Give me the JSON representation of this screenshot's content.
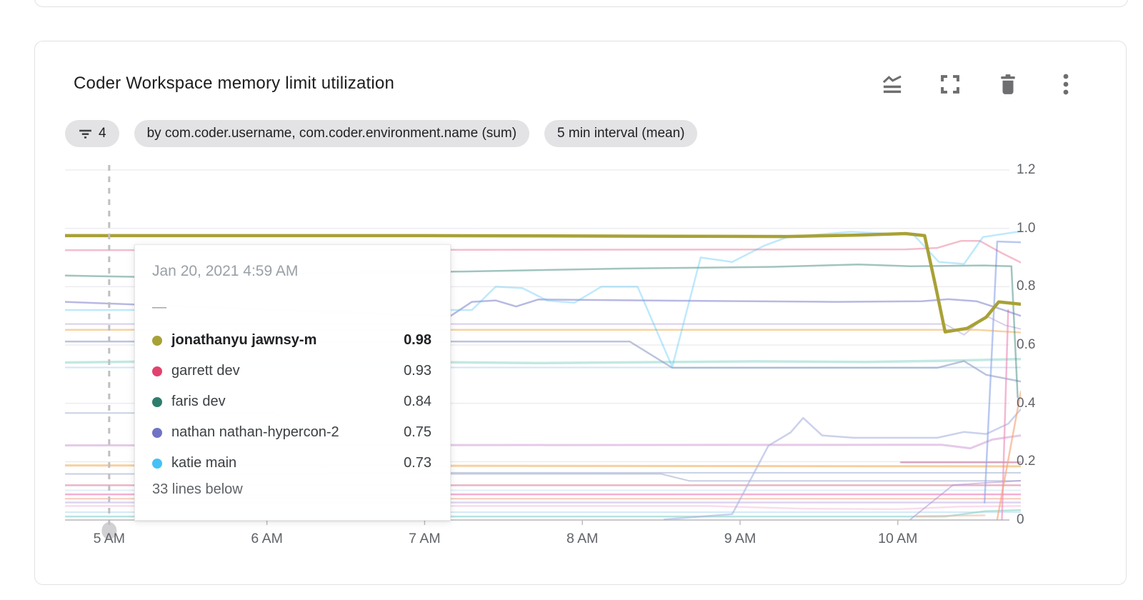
{
  "card": {
    "title": "Coder Workspace memory limit utilization",
    "toolbar": {
      "icons": [
        "area-chart-icon",
        "fullscreen-icon",
        "trash-icon",
        "kebab-menu-icon"
      ]
    }
  },
  "chips": {
    "filter_icon": "filter-funnel-icon",
    "filter_count": "4",
    "group_by": "by com.coder.username, com.coder.environment.name (sum)",
    "interval": "5 min interval (mean)"
  },
  "tooltip": {
    "timestamp": "Jan 20, 2021 4:59 AM",
    "placeholder": "—",
    "rows": [
      {
        "name": "jonathanyu jawnsy-m",
        "value": "0.98",
        "color": "#a8a136",
        "bold": true
      },
      {
        "name": "garrett dev",
        "value": "0.93",
        "color": "#e0436e",
        "bold": false
      },
      {
        "name": "faris dev",
        "value": "0.84",
        "color": "#2e7d6e",
        "bold": false
      },
      {
        "name": "nathan nathan-hypercon-2",
        "value": "0.75",
        "color": "#6f74c5",
        "bold": false
      },
      {
        "name": "katie main",
        "value": "0.73",
        "color": "#45c1f5",
        "bold": false
      }
    ],
    "footer": "33 lines below"
  },
  "chart_data": {
    "type": "line",
    "title": "Coder Workspace memory limit utilization",
    "x_domain": [
      4.72,
      10.78
    ],
    "x_unit": "hour-of-day",
    "y_domain": [
      0,
      1.2
    ],
    "grid": true,
    "legend_position": "tooltip-only",
    "x_ticks": [
      {
        "v": 5,
        "label": "5 AM"
      },
      {
        "v": 6,
        "label": "6 AM"
      },
      {
        "v": 7,
        "label": "7 AM"
      },
      {
        "v": 8,
        "label": "8 AM"
      },
      {
        "v": 9,
        "label": "9 AM"
      },
      {
        "v": 10,
        "label": "10 AM"
      }
    ],
    "y_ticks": [
      {
        "v": 0,
        "label": "0"
      },
      {
        "v": 0.2,
        "label": "0.2"
      },
      {
        "v": 0.4,
        "label": "0.4"
      },
      {
        "v": 0.6,
        "label": "0.6"
      },
      {
        "v": 0.8,
        "label": "0.8"
      },
      {
        "v": 1.0,
        "label": "1.0"
      },
      {
        "v": 1.2,
        "label": "1.2"
      }
    ],
    "cursor": {
      "hour": 5.0,
      "timestamp": "Jan 20, 2021 4:59 AM"
    },
    "series": [
      {
        "name": "paleblue-0.52",
        "color": "#b5daf2",
        "width": 2,
        "opacity": 0.65,
        "points": [
          [
            4.72,
            0.523
          ],
          [
            10.78,
            0.523
          ]
        ]
      },
      {
        "name": "teal-0.54",
        "color": "#79ccc1",
        "width": 3.5,
        "opacity": 0.45,
        "points": [
          [
            4.72,
            0.54
          ],
          [
            5.5,
            0.545
          ],
          [
            6.1,
            0.538
          ],
          [
            6.9,
            0.542
          ],
          [
            7.7,
            0.538
          ],
          [
            8.4,
            0.541
          ],
          [
            9.1,
            0.544
          ],
          [
            9.8,
            0.542
          ],
          [
            10.3,
            0.546
          ],
          [
            10.78,
            0.552
          ]
        ]
      },
      {
        "name": "lavender-0.67",
        "color": "#b9a7dd",
        "width": 2,
        "opacity": 0.55,
        "points": [
          [
            4.72,
            0.672
          ],
          [
            10.3,
            0.672
          ],
          [
            10.42,
            0.635
          ],
          [
            10.56,
            0.7
          ],
          [
            10.68,
            0.668
          ],
          [
            10.78,
            0.655
          ]
        ]
      },
      {
        "name": "orange-0.65",
        "color": "#f2b566",
        "width": 2.5,
        "opacity": 0.6,
        "points": [
          [
            4.72,
            0.652
          ],
          [
            10.5,
            0.652
          ],
          [
            10.78,
            0.643
          ]
        ]
      },
      {
        "name": "slate-0.61",
        "color": "#8f9dc4",
        "width": 2.5,
        "opacity": 0.6,
        "points": [
          [
            4.72,
            0.612
          ],
          [
            8.3,
            0.612
          ],
          [
            8.57,
            0.522
          ],
          [
            10.25,
            0.522
          ],
          [
            10.42,
            0.545
          ],
          [
            10.56,
            0.498
          ],
          [
            10.78,
            0.475
          ]
        ]
      },
      {
        "name": "slate-0.37",
        "color": "#9bacce",
        "width": 2,
        "opacity": 0.55,
        "points": [
          [
            4.72,
            0.367
          ],
          [
            6.05,
            0.367
          ],
          [
            6.4,
            0.162
          ],
          [
            10.78,
            0.162
          ]
        ]
      },
      {
        "name": "slate-0.16",
        "color": "#9aa8c9",
        "width": 2,
        "opacity": 0.55,
        "points": [
          [
            4.72,
            0.158
          ],
          [
            8.5,
            0.158
          ],
          [
            8.68,
            0.134
          ],
          [
            10.78,
            0.134
          ]
        ]
      },
      {
        "name": "plum-0.25",
        "color": "#cf9fd6",
        "width": 3,
        "opacity": 0.55,
        "points": [
          [
            4.72,
            0.256
          ],
          [
            10.28,
            0.258
          ],
          [
            10.46,
            0.246
          ],
          [
            10.6,
            0.276
          ],
          [
            10.78,
            0.29
          ]
        ]
      },
      {
        "name": "orange-0.19",
        "color": "#f0b060",
        "width": 3,
        "opacity": 0.6,
        "points": [
          [
            4.72,
            0.187
          ],
          [
            10.78,
            0.184
          ]
        ]
      },
      {
        "name": "rose-0.12",
        "color": "#d9849f",
        "width": 2.5,
        "opacity": 0.6,
        "points": [
          [
            4.72,
            0.119
          ],
          [
            10.78,
            0.119
          ]
        ]
      },
      {
        "name": "paleblue-0.10",
        "color": "#cde4f7",
        "width": 2,
        "opacity": 0.6,
        "points": [
          [
            4.72,
            0.102
          ],
          [
            10.78,
            0.102
          ]
        ]
      },
      {
        "name": "magenta-0.09",
        "color": "#ee79b2",
        "width": 2.5,
        "opacity": 0.6,
        "points": [
          [
            4.72,
            0.088
          ],
          [
            10.78,
            0.088
          ]
        ]
      },
      {
        "name": "salmon-0.07",
        "color": "#f2a58f",
        "width": 2,
        "opacity": 0.6,
        "points": [
          [
            4.72,
            0.073
          ],
          [
            10.78,
            0.073
          ]
        ]
      },
      {
        "name": "lavender-0.06",
        "color": "#c9b8e8",
        "width": 2.5,
        "opacity": 0.6,
        "points": [
          [
            4.72,
            0.06
          ],
          [
            10.78,
            0.06
          ]
        ]
      },
      {
        "name": "palepink-0.05",
        "color": "#f5c0dc",
        "width": 2.5,
        "opacity": 0.55,
        "points": [
          [
            4.72,
            0.048
          ],
          [
            8.8,
            0.048
          ],
          [
            9.4,
            0.039
          ],
          [
            10.0,
            0.037
          ],
          [
            10.4,
            0.046
          ],
          [
            10.78,
            0.048
          ]
        ]
      },
      {
        "name": "paleblue-0.03",
        "color": "#bcdff5",
        "width": 2,
        "opacity": 0.65,
        "points": [
          [
            4.72,
            0.027
          ],
          [
            10.78,
            0.027
          ]
        ]
      },
      {
        "name": "teal-0.01",
        "color": "#8fd5cc",
        "width": 2.5,
        "opacity": 0.65,
        "points": [
          [
            4.72,
            0.012
          ],
          [
            10.3,
            0.012
          ],
          [
            10.55,
            0.03
          ],
          [
            10.78,
            0.034
          ]
        ]
      },
      {
        "name": "periwinkle-bump",
        "color": "#a9b2e0",
        "width": 2.5,
        "opacity": 0.6,
        "points": [
          [
            8.52,
            0.002
          ],
          [
            8.95,
            0.02
          ],
          [
            9.18,
            0.255
          ],
          [
            9.32,
            0.3
          ],
          [
            9.4,
            0.35
          ],
          [
            9.52,
            0.29
          ],
          [
            9.72,
            0.282
          ],
          [
            10.25,
            0.282
          ],
          [
            10.42,
            0.302
          ],
          [
            10.56,
            0.295
          ],
          [
            10.7,
            0.33
          ],
          [
            10.78,
            0.38
          ]
        ]
      },
      {
        "name": "rose-short",
        "color": "#c2719b",
        "width": 2.5,
        "opacity": 0.6,
        "points": [
          [
            10.02,
            0.198
          ],
          [
            10.78,
            0.198
          ]
        ]
      },
      {
        "name": "purple-riser",
        "color": "#b08fd9",
        "width": 2,
        "opacity": 0.55,
        "points": [
          [
            10.08,
            0.002
          ],
          [
            10.35,
            0.12
          ],
          [
            10.78,
            0.135
          ]
        ]
      },
      {
        "name": "salmon-short",
        "color": "#f0b49b",
        "width": 2.5,
        "opacity": 0.55,
        "points": [
          [
            10.12,
            0.013
          ],
          [
            10.55,
            0.016
          ]
        ]
      },
      {
        "name": "blue-riser",
        "color": "#8ba3e8",
        "width": 2.5,
        "opacity": 0.6,
        "points": [
          [
            10.55,
            0.06
          ],
          [
            10.63,
            0.955
          ],
          [
            10.78,
            0.952
          ]
        ]
      },
      {
        "name": "pink-spike",
        "color": "#ec87b8",
        "width": 2.5,
        "opacity": 0.6,
        "points": [
          [
            10.66,
            0.002
          ],
          [
            10.7,
            0.72
          ]
        ]
      },
      {
        "name": "orange-spike",
        "color": "#f5a77b",
        "width": 2.5,
        "opacity": 0.65,
        "points": [
          [
            10.63,
            0.002
          ],
          [
            10.78,
            0.44
          ]
        ]
      },
      {
        "name": "garrett dev",
        "color": "#e0436e",
        "width": 2.5,
        "opacity": 0.35,
        "points": [
          [
            4.72,
            0.925
          ],
          [
            10.05,
            0.928
          ],
          [
            10.25,
            0.933
          ],
          [
            10.4,
            0.957
          ],
          [
            10.52,
            0.957
          ],
          [
            10.66,
            0.915
          ],
          [
            10.78,
            0.883
          ]
        ]
      },
      {
        "name": "faris dev",
        "color": "#2e7d6e",
        "width": 2.5,
        "opacity": 0.45,
        "points": [
          [
            4.72,
            0.838
          ],
          [
            5.35,
            0.832
          ],
          [
            5.65,
            0.842
          ],
          [
            6.35,
            0.846
          ],
          [
            7.25,
            0.852
          ],
          [
            8.25,
            0.862
          ],
          [
            9.2,
            0.868
          ],
          [
            9.75,
            0.876
          ],
          [
            10.08,
            0.87
          ],
          [
            10.55,
            0.873
          ],
          [
            10.72,
            0.87
          ],
          [
            10.76,
            0.42
          ]
        ]
      },
      {
        "name": "nathan nathan-hypercon-2",
        "color": "#6f74c5",
        "width": 2.5,
        "opacity": 0.5,
        "points": [
          [
            4.72,
            0.748
          ],
          [
            7.16,
            0.698
          ],
          [
            7.3,
            0.748
          ],
          [
            7.45,
            0.753
          ],
          [
            7.58,
            0.732
          ],
          [
            7.72,
            0.756
          ],
          [
            8.6,
            0.752
          ],
          [
            9.6,
            0.748
          ],
          [
            10.15,
            0.75
          ],
          [
            10.32,
            0.757
          ],
          [
            10.5,
            0.75
          ],
          [
            10.66,
            0.722
          ],
          [
            10.78,
            0.7
          ]
        ]
      },
      {
        "name": "katie main",
        "color": "#45c1f5",
        "width": 2.5,
        "opacity": 0.35,
        "points": [
          [
            4.72,
            0.72
          ],
          [
            7.3,
            0.72
          ],
          [
            7.45,
            0.8
          ],
          [
            7.62,
            0.795
          ],
          [
            7.78,
            0.752
          ],
          [
            7.95,
            0.745
          ],
          [
            8.12,
            0.8
          ],
          [
            8.35,
            0.8
          ],
          [
            8.57,
            0.525
          ],
          [
            8.75,
            0.9
          ],
          [
            8.95,
            0.885
          ],
          [
            9.15,
            0.94
          ],
          [
            9.3,
            0.97
          ],
          [
            9.7,
            0.988
          ],
          [
            10.1,
            0.978
          ],
          [
            10.26,
            0.885
          ],
          [
            10.42,
            0.878
          ],
          [
            10.54,
            0.97
          ],
          [
            10.78,
            0.99
          ]
        ]
      },
      {
        "name": "jonathanyu jawnsy-m",
        "color": "#a8a136",
        "width": 4.5,
        "opacity": 1,
        "points": [
          [
            4.72,
            0.975
          ],
          [
            7.0,
            0.975
          ],
          [
            8.6,
            0.973
          ],
          [
            9.3,
            0.972
          ],
          [
            9.75,
            0.977
          ],
          [
            10.05,
            0.982
          ],
          [
            10.17,
            0.975
          ],
          [
            10.24,
            0.8
          ],
          [
            10.3,
            0.645
          ],
          [
            10.44,
            0.657
          ],
          [
            10.56,
            0.695
          ],
          [
            10.64,
            0.748
          ],
          [
            10.78,
            0.74
          ]
        ]
      }
    ]
  }
}
